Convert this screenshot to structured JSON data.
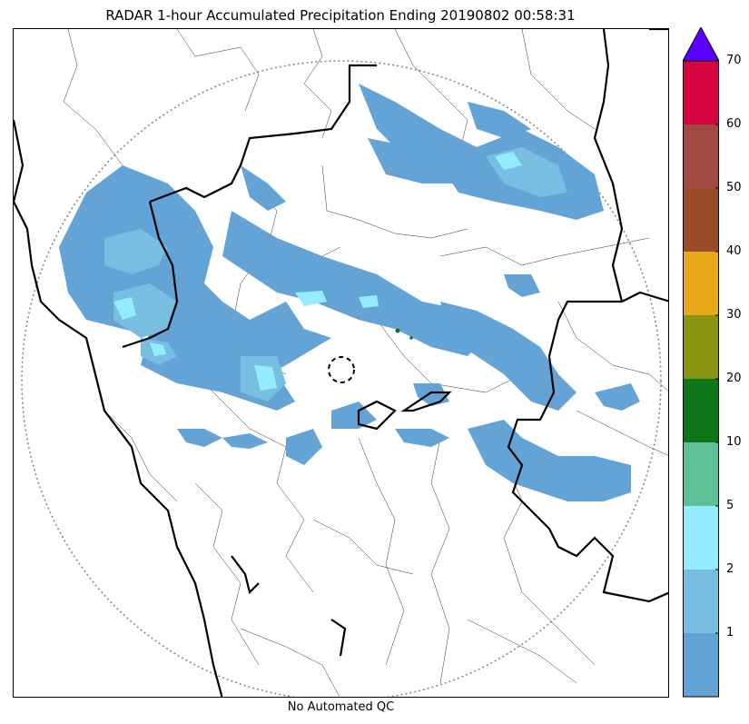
{
  "title": "RADAR 1-hour Accumulated Precipitation Ending 20190802 00:58:31",
  "footer": "No Automated QC",
  "colorbar": {
    "ticks": [
      {
        "label": "1",
        "level": 1
      },
      {
        "label": "2",
        "level": 2
      },
      {
        "label": "5",
        "level": 3
      },
      {
        "label": "10",
        "level": 4
      },
      {
        "label": "20",
        "level": 5
      },
      {
        "label": "30",
        "level": 6
      },
      {
        "label": "40",
        "level": 7
      },
      {
        "label": "50",
        "level": 8
      },
      {
        "label": "60",
        "level": 9
      },
      {
        "label": "70",
        "level": 10
      }
    ],
    "colors": [
      "#64a3d6",
      "#78bde2",
      "#93ecff",
      "#5dc197",
      "#0e7619",
      "#8a9312",
      "#e9a81a",
      "#9a4e27",
      "#a24944",
      "#d6043f"
    ],
    "extend_color": "#5a00ff"
  },
  "map": {
    "range_ring_style": "dotted",
    "radar_site_marker": "dashed-circle",
    "precip_colors": {
      "light": "#64a3d6",
      "moderate": "#78bde2",
      "heavy": "#93ecff",
      "green": "#0e7619"
    }
  }
}
